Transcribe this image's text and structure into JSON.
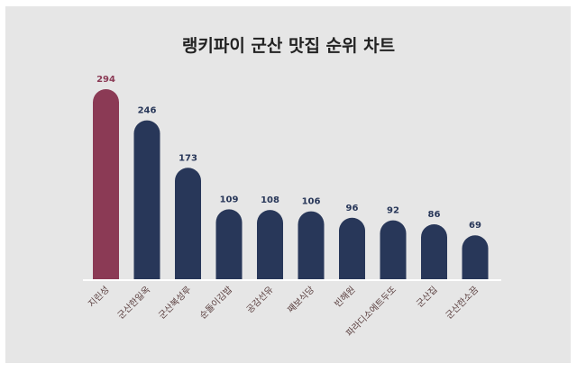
{
  "title": "랭키파이 군산 맛집 순위 차트",
  "colors": {
    "highlight": "#8b3a55",
    "bar": "#283759",
    "label": "#5a3f3f",
    "axis": "#ffffff",
    "background": "#e6e6e6"
  },
  "chart_data": {
    "type": "bar",
    "title": "랭키파이 군산 맛집 순위 차트",
    "categories": [
      "지린성",
      "군산한일옥",
      "군산복성루",
      "순돌이김밥",
      "공감선유",
      "째보식당",
      "빈해원",
      "파라디소에트두또",
      "군산집",
      "군산한소끔"
    ],
    "values": [
      294,
      246,
      173,
      109,
      108,
      106,
      96,
      92,
      86,
      69
    ],
    "highlight_index": 0,
    "ylim": [
      0,
      294
    ],
    "grid": false,
    "legend": "none"
  }
}
